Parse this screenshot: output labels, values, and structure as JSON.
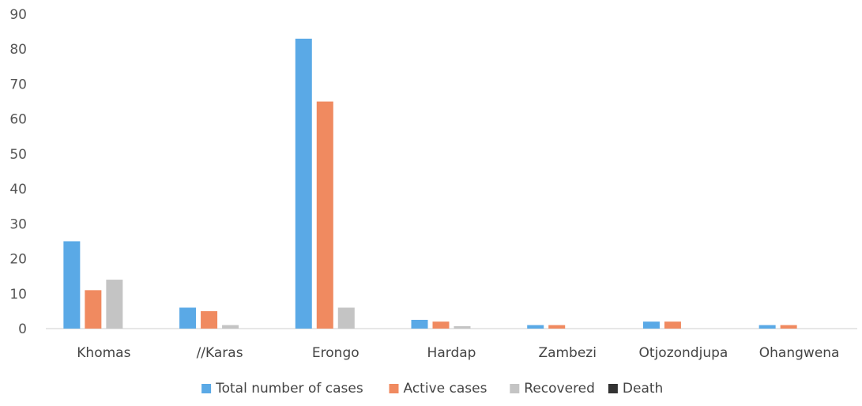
{
  "chart_data": {
    "type": "bar",
    "title": "",
    "xlabel": "",
    "ylabel": "",
    "ylim": [
      0,
      90
    ],
    "yticks": [
      "0",
      "10",
      "20",
      "30",
      "40",
      "50",
      "60",
      "70",
      "80",
      "90"
    ],
    "grid": false,
    "legend_position": "bottom",
    "categories": [
      "Khomas",
      "//Karas",
      "Erongo",
      "Hardap",
      "Zambezi",
      "Otjozondjupa",
      "Ohangwena"
    ],
    "series": [
      {
        "name": "Total number of cases",
        "color": "#5aa9e6",
        "values": [
          25,
          6,
          83,
          2.5,
          1,
          2,
          1
        ]
      },
      {
        "name": "Active cases",
        "color": "#f08a60",
        "values": [
          11,
          5,
          65,
          2,
          1,
          2,
          1
        ]
      },
      {
        "name": "Recovered",
        "color": "#c4c4c4",
        "values": [
          14,
          1,
          6,
          0.7,
          0,
          0,
          0
        ]
      },
      {
        "name": "Death",
        "color": "#333333",
        "values": [
          0,
          0,
          0,
          0,
          0,
          0,
          0
        ]
      }
    ]
  }
}
